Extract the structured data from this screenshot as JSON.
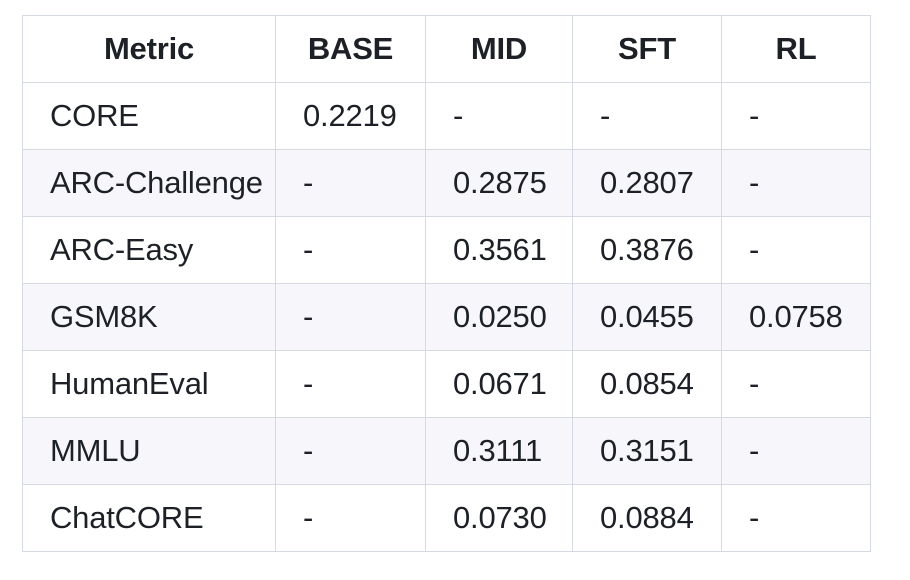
{
  "table": {
    "header": [
      "Metric",
      "BASE",
      "MID",
      "SFT",
      "RL"
    ],
    "rows": [
      [
        "CORE",
        "0.2219",
        "-",
        "-",
        "-"
      ],
      [
        "ARC-Challenge",
        "-",
        "0.2875",
        "0.2807",
        "-"
      ],
      [
        "ARC-Easy",
        "-",
        "0.3561",
        "0.3876",
        "-"
      ],
      [
        "GSM8K",
        "-",
        "0.0250",
        "0.0455",
        "0.0758"
      ],
      [
        "HumanEval",
        "-",
        "0.0671",
        "0.0854",
        "-"
      ],
      [
        "MMLU",
        "-",
        "0.3111",
        "0.3151",
        "-"
      ],
      [
        "ChatCORE",
        "-",
        "0.0730",
        "0.0884",
        "-"
      ]
    ]
  },
  "colors": {
    "border": "#d5d9e2",
    "row_alt_bg": "#f7f7fb",
    "text": "#1d2127",
    "page_bg": "#ffffff"
  }
}
